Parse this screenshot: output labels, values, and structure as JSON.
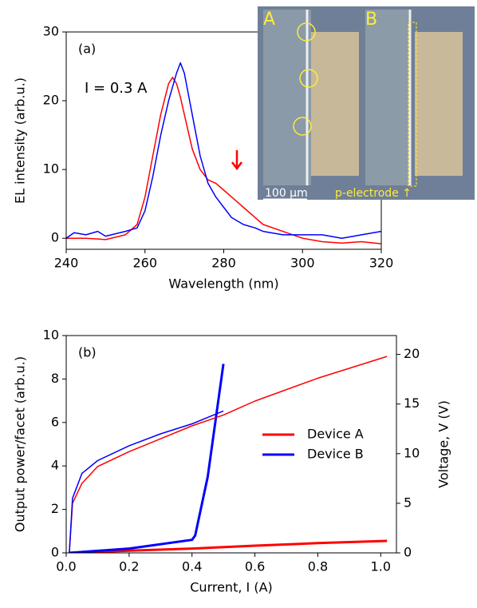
{
  "chart_data": [
    {
      "type": "line",
      "annotation": "(a)",
      "label": "I = 0.3 A",
      "x_label": "Wavelength (nm)",
      "y_label": "EL intensity (arb.u.)",
      "xlim": [
        240,
        320
      ],
      "xticks": [
        240,
        260,
        280,
        300,
        320
      ],
      "ylim": [
        -1.6,
        30
      ],
      "yticks": [
        0,
        10,
        20,
        30
      ],
      "x": [
        240,
        242,
        245,
        248,
        250,
        255,
        258,
        260,
        262,
        264,
        266,
        267,
        268,
        269,
        270,
        272,
        274,
        276,
        278,
        280,
        282,
        285,
        288,
        290,
        295,
        300,
        305,
        310,
        315,
        320
      ],
      "series": [
        {
          "color": "#ff0000",
          "values": [
            0,
            0,
            0,
            -0.1,
            -0.2,
            0.5,
            2,
            6,
            12,
            18,
            22.5,
            23.4,
            22.5,
            20.5,
            18,
            13,
            10,
            8.5,
            8,
            7,
            6,
            4.5,
            3,
            2,
            1,
            0,
            -0.5,
            -0.7,
            -0.5,
            -0.8
          ]
        },
        {
          "color": "#0000ff",
          "values": [
            0,
            0.8,
            0.5,
            1,
            0.3,
            1,
            1.5,
            4,
            9,
            15,
            20,
            22,
            24,
            25.5,
            24,
            18,
            12,
            8,
            6,
            4.5,
            3,
            2,
            1.5,
            1,
            0.5,
            0.5,
            0.5,
            0,
            0.5,
            1
          ]
        }
      ],
      "inset": {
        "labels": [
          "A",
          "B",
          "100 µm",
          "p-electrode ↑"
        ]
      }
    },
    {
      "type": "line",
      "annotation": "(b)",
      "x_label": "Current, I (A)",
      "y_label": "Output power/facet (arb.u.)",
      "y2_label": "Voltage, V (V)",
      "xlim": [
        0,
        1.05
      ],
      "xticks": [
        {
          "value": 0,
          "label": "0.0"
        },
        {
          "value": 0.2,
          "label": "0.2"
        },
        {
          "value": 0.4,
          "label": "0.4"
        },
        {
          "value": 0.6,
          "label": "0.6"
        },
        {
          "value": 0.8,
          "label": "0.8"
        },
        {
          "value": 1,
          "label": "1.0"
        }
      ],
      "ylim": [
        0,
        10
      ],
      "yticks": [
        0,
        2,
        4,
        6,
        8,
        10
      ],
      "y2lim": [
        0,
        21.9
      ],
      "y2ticks": [
        0,
        5,
        10,
        15,
        20
      ],
      "legend": "center right",
      "series": [
        {
          "name": "Device A",
          "color": "#ff0000",
          "width": 3,
          "x": [
            0.01,
            0.1,
            0.2,
            0.4,
            0.6,
            0.8,
            1.02
          ],
          "values": [
            0,
            0.05,
            0.1,
            0.2,
            0.33,
            0.45,
            0.55
          ]
        },
        {
          "name": "Device B",
          "color": "#0000ff",
          "width": 3,
          "x": [
            0.01,
            0.2,
            0.4,
            0.41,
            0.45,
            0.5
          ],
          "values": [
            0,
            0.2,
            0.6,
            0.8,
            3.5,
            8.7
          ]
        },
        {
          "axis": "y2",
          "color": "#ff0000",
          "width": 1.5,
          "x": [
            0.01,
            0.02,
            0.05,
            0.1,
            0.2,
            0.3,
            0.4,
            0.5,
            0.6,
            0.8,
            1.02
          ],
          "values": [
            0,
            5,
            7,
            8.7,
            10.2,
            11.5,
            12.8,
            13.9,
            15.3,
            17.6,
            19.8
          ]
        },
        {
          "axis": "y2",
          "color": "#0000ff",
          "width": 1.5,
          "x": [
            0.01,
            0.02,
            0.05,
            0.1,
            0.2,
            0.3,
            0.4,
            0.5
          ],
          "values": [
            0,
            5.5,
            8,
            9.3,
            10.8,
            12,
            13,
            14.3
          ]
        }
      ]
    }
  ]
}
